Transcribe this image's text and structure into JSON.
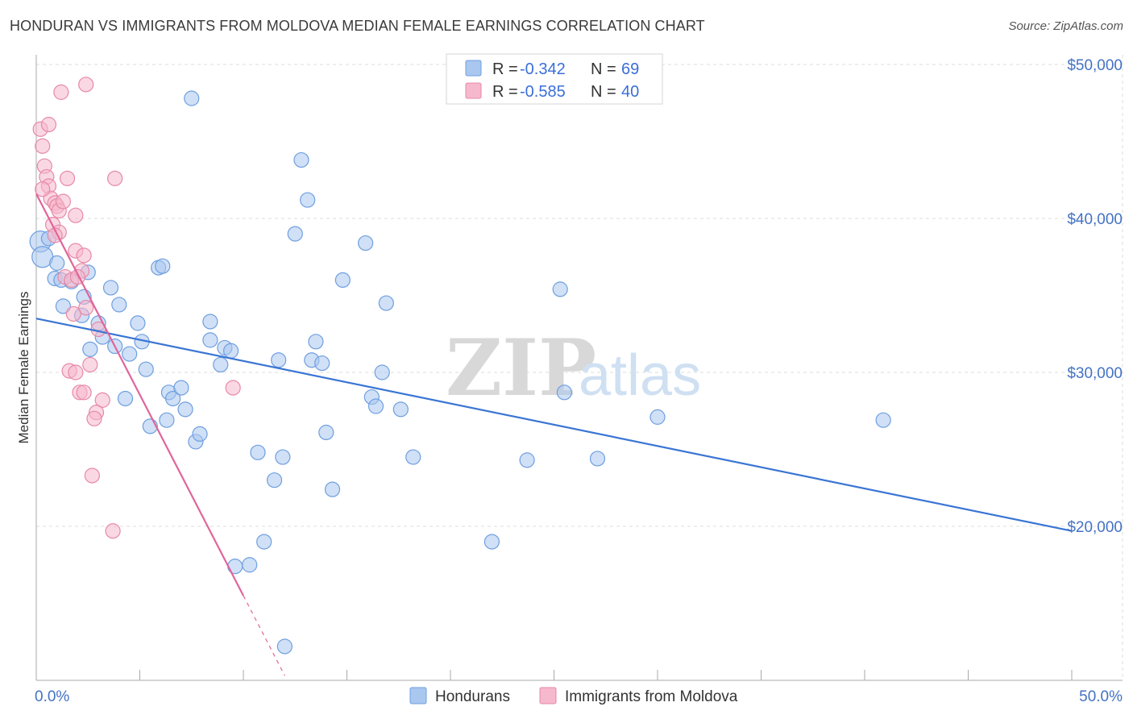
{
  "title": "HONDURAN VS IMMIGRANTS FROM MOLDOVA MEDIAN FEMALE EARNINGS CORRELATION CHART",
  "source": "Source: ZipAtlas.com",
  "watermark": {
    "zip": "ZIP",
    "atlas": "atlas"
  },
  "legend": {
    "items": [
      {
        "r_label": "R = ",
        "r_value": "-0.342",
        "n_label": "N = ",
        "n_value": "69",
        "color": "#a9c7ef"
      },
      {
        "r_label": "R = ",
        "r_value": "-0.585",
        "n_label": "N = ",
        "n_value": "40",
        "color": "#f6b8cc"
      }
    ]
  },
  "bottom_legend": [
    "Hondurans",
    "Immigrants from Moldova"
  ],
  "colors": {
    "blue_fill": "#a9c7ef",
    "blue_stroke": "#6f9fe0",
    "blue_line": "#3a75d4",
    "pink_fill": "#f6b8cc",
    "pink_stroke": "#e689a8",
    "pink_line": "#e0659a",
    "axis_text": "#4472c4",
    "grid": "#dddddd"
  },
  "chart_data": {
    "type": "scatter",
    "xlabel": "",
    "ylabel": "Median Female Earnings",
    "x_ticks": [
      "0.0%",
      "50.0%"
    ],
    "y_ticks": [
      "$20,000",
      "$30,000",
      "$40,000",
      "$50,000"
    ],
    "xlim": [
      0,
      50
    ],
    "ylim": [
      10000,
      51000
    ],
    "series": [
      {
        "name": "Hondurans",
        "points": [
          [
            0.2,
            38500
          ],
          [
            0.3,
            37500
          ],
          [
            0.6,
            38700
          ],
          [
            0.9,
            36100
          ],
          [
            1.2,
            36000
          ],
          [
            1.7,
            35900
          ],
          [
            1.3,
            34300
          ],
          [
            2.3,
            34900
          ],
          [
            2.2,
            33700
          ],
          [
            3.0,
            33200
          ],
          [
            3.2,
            32300
          ],
          [
            2.6,
            31500
          ],
          [
            3.6,
            35500
          ],
          [
            4.0,
            34400
          ],
          [
            3.8,
            31700
          ],
          [
            4.5,
            31200
          ],
          [
            4.9,
            33200
          ],
          [
            5.1,
            32000
          ],
          [
            5.3,
            30200
          ],
          [
            4.3,
            28300
          ],
          [
            5.5,
            26500
          ],
          [
            5.9,
            36800
          ],
          [
            6.1,
            36900
          ],
          [
            6.3,
            26900
          ],
          [
            6.4,
            28700
          ],
          [
            6.6,
            28300
          ],
          [
            7.0,
            29000
          ],
          [
            7.2,
            27600
          ],
          [
            7.5,
            47800
          ],
          [
            7.7,
            25500
          ],
          [
            7.9,
            26000
          ],
          [
            8.4,
            33300
          ],
          [
            8.4,
            32100
          ],
          [
            8.9,
            30500
          ],
          [
            9.1,
            31600
          ],
          [
            9.4,
            31400
          ],
          [
            9.6,
            17400
          ],
          [
            10.3,
            17500
          ],
          [
            10.7,
            24800
          ],
          [
            11.0,
            19000
          ],
          [
            11.5,
            23000
          ],
          [
            11.7,
            30800
          ],
          [
            11.9,
            24500
          ],
          [
            12.5,
            39000
          ],
          [
            12.8,
            43800
          ],
          [
            13.1,
            41200
          ],
          [
            13.3,
            30800
          ],
          [
            13.5,
            32000
          ],
          [
            13.8,
            30600
          ],
          [
            14.0,
            26100
          ],
          [
            14.3,
            22400
          ],
          [
            14.8,
            36000
          ],
          [
            15.9,
            38400
          ],
          [
            16.2,
            28400
          ],
          [
            16.4,
            27800
          ],
          [
            16.7,
            30000
          ],
          [
            16.9,
            34500
          ],
          [
            17.6,
            27600
          ],
          [
            18.2,
            24500
          ],
          [
            22.0,
            19000
          ],
          [
            23.7,
            24300
          ],
          [
            25.3,
            35400
          ],
          [
            25.5,
            28700
          ],
          [
            27.1,
            24400
          ],
          [
            30.0,
            27100
          ],
          [
            40.9,
            26900
          ],
          [
            12.0,
            12200
          ],
          [
            1.0,
            37100
          ],
          [
            2.5,
            36500
          ]
        ]
      },
      {
        "name": "Immigrants from Moldova",
        "points": [
          [
            0.2,
            45800
          ],
          [
            0.3,
            44700
          ],
          [
            0.4,
            43400
          ],
          [
            0.5,
            42700
          ],
          [
            0.6,
            42100
          ],
          [
            0.7,
            41300
          ],
          [
            0.9,
            41000
          ],
          [
            1.0,
            40800
          ],
          [
            1.1,
            40500
          ],
          [
            0.6,
            46100
          ],
          [
            0.8,
            39600
          ],
          [
            1.1,
            39100
          ],
          [
            1.9,
            40200
          ],
          [
            1.5,
            42600
          ],
          [
            1.9,
            37900
          ],
          [
            2.2,
            36600
          ],
          [
            1.4,
            36200
          ],
          [
            1.7,
            36000
          ],
          [
            2.3,
            37600
          ],
          [
            2.0,
            36200
          ],
          [
            2.4,
            34200
          ],
          [
            1.8,
            33800
          ],
          [
            3.0,
            32800
          ],
          [
            1.6,
            30100
          ],
          [
            1.9,
            30000
          ],
          [
            2.6,
            30500
          ],
          [
            2.1,
            28700
          ],
          [
            2.3,
            28700
          ],
          [
            3.2,
            28200
          ],
          [
            2.9,
            27400
          ],
          [
            2.8,
            27000
          ],
          [
            2.7,
            23300
          ],
          [
            3.7,
            19700
          ],
          [
            3.8,
            42600
          ],
          [
            2.4,
            48700
          ],
          [
            1.2,
            48200
          ],
          [
            9.5,
            29000
          ],
          [
            0.3,
            41900
          ],
          [
            1.3,
            41100
          ],
          [
            0.9,
            38900
          ]
        ]
      }
    ],
    "trendlines": [
      {
        "series": "Hondurans",
        "x": [
          0,
          50
        ],
        "y": [
          33500,
          19700
        ]
      },
      {
        "series": "Immigrants from Moldova",
        "x": [
          0,
          10
        ],
        "y": [
          41600,
          15500
        ],
        "dashed_x": [
          10,
          12
        ],
        "dashed_y": [
          15500,
          10300
        ]
      }
    ]
  }
}
